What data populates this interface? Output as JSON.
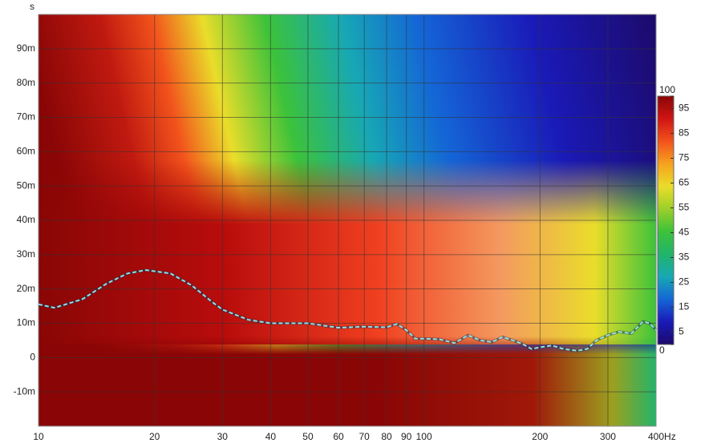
{
  "chart_data": {
    "type": "line",
    "y_label": "s",
    "xscale": "log",
    "xlim": [
      10,
      400
    ],
    "xticks": [
      10,
      20,
      30,
      40,
      50,
      60,
      70,
      80,
      90,
      100,
      200,
      300,
      {
        "value": 400,
        "label": "400Hz"
      }
    ],
    "ylim": [
      -20,
      100
    ],
    "yticks": [
      {
        "value": -10,
        "label": "-10m"
      },
      0,
      {
        "value": 10,
        "label": "10m"
      },
      {
        "value": 20,
        "label": "20m"
      },
      {
        "value": 30,
        "label": "30m"
      },
      {
        "value": 40,
        "label": "40m"
      },
      {
        "value": 50,
        "label": "50m"
      },
      {
        "value": 60,
        "label": "60m"
      },
      {
        "value": 70,
        "label": "70m"
      },
      {
        "value": 80,
        "label": "80m"
      },
      {
        "value": 90,
        "label": "90m"
      }
    ],
    "grid": true,
    "series": [
      {
        "color": "#8ee0ee",
        "x": [
          10,
          11,
          13,
          15,
          17,
          19,
          22,
          25,
          28,
          30,
          35,
          40,
          50,
          60,
          70,
          80,
          85,
          90,
          95,
          100,
          110,
          120,
          130,
          140,
          150,
          160,
          170,
          180,
          190,
          200,
          215,
          230,
          250,
          265,
          280,
          300,
          320,
          345,
          370,
          385,
          400
        ],
        "values": [
          15.5,
          14.5,
          17,
          21.5,
          24.5,
          25.5,
          24.5,
          21,
          16.5,
          14,
          11,
          10,
          10,
          8.7,
          9,
          8.8,
          9.8,
          8,
          5.5,
          5.5,
          5.3,
          4.2,
          6.5,
          5,
          4.5,
          6,
          5,
          4,
          2.5,
          3,
          3.5,
          2.5,
          2,
          2.5,
          5,
          6.5,
          7.5,
          7,
          10.5,
          10,
          8
        ]
      }
    ],
    "colorbar": {
      "lim": [
        0,
        100
      ],
      "ticks": [
        0,
        5,
        15,
        25,
        35,
        45,
        55,
        65,
        75,
        85,
        95,
        100
      ],
      "colors": [
        "#1c0a6a",
        "#1a1ab8",
        "#1466d6",
        "#17a8b4",
        "#22b46a",
        "#3cc23a",
        "#9ccf2a",
        "#eadd2a",
        "#f6a21e",
        "#f2521c",
        "#d01414",
        "#8a0606"
      ]
    }
  }
}
